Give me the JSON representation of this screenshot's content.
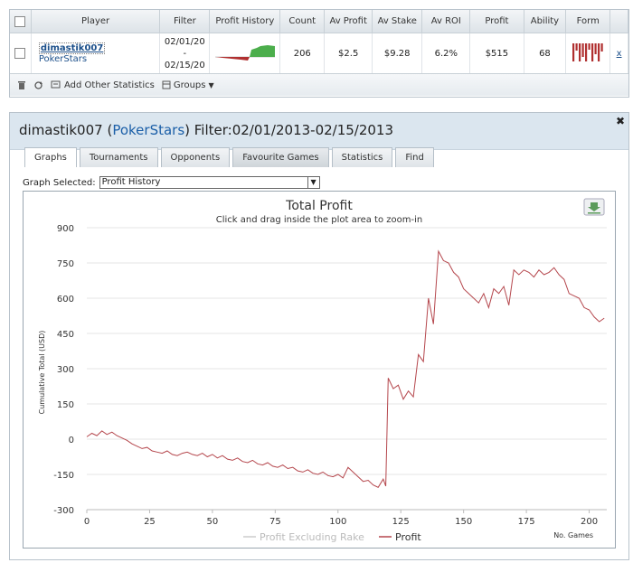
{
  "stats_table": {
    "headers": [
      "Player",
      "Filter",
      "Profit History",
      "Count",
      "Av Profit",
      "Av Stake",
      "Av ROI",
      "Profit",
      "Ability",
      "Form"
    ],
    "row": {
      "player": "dimastik007",
      "site": "PokerStars",
      "filter_from": "02/01/20",
      "filter_dash": "-",
      "filter_to": "02/15/20",
      "count": "206",
      "av_profit": "$2.5",
      "av_stake": "$9.28",
      "av_roi": "6.2%",
      "profit": "$515",
      "ability": "68",
      "remove": "x"
    },
    "form_bars": [
      1,
      0.4,
      1,
      0.75,
      1,
      0.35,
      1,
      0.6,
      1,
      0.45
    ],
    "toolbar": {
      "add_stats": "Add Other Statistics",
      "groups": "Groups"
    }
  },
  "detail": {
    "player": "dimastik007",
    "site_open": "(",
    "site": "PokerStars",
    "filter_text": ") Filter:02/01/2013-02/15/2013",
    "tabs": [
      "Graphs",
      "Tournaments",
      "Opponents",
      "Favourite Games",
      "Statistics",
      "Find"
    ],
    "graph_selected_label": "Graph Selected:",
    "graph_selected_value": "Profit History"
  },
  "colors": {
    "profit_line": "#b5474d",
    "rake_line": "#cccccc",
    "sparkline_pos": "#4cae4c",
    "sparkline_neg": "#b03030"
  },
  "chart_data": {
    "type": "line",
    "title": "Total Profit",
    "subtitle": "Click and drag inside the plot area to zoom-in",
    "xlabel": "No. Games",
    "ylabel": "Cumulative Total (USD)",
    "xlim": [
      0,
      207
    ],
    "ylim": [
      -300,
      900
    ],
    "xticks": [
      0,
      25,
      50,
      75,
      100,
      125,
      150,
      175,
      200
    ],
    "yticks": [
      -300,
      -150,
      0,
      150,
      300,
      450,
      600,
      750,
      900
    ],
    "grid": true,
    "legend": "bottom",
    "series": [
      {
        "name": "Profit Excluding Rake",
        "values": []
      },
      {
        "name": "Profit",
        "x": [
          0,
          2,
          4,
          6,
          8,
          10,
          12,
          14,
          16,
          18,
          20,
          22,
          24,
          26,
          28,
          30,
          32,
          34,
          36,
          38,
          40,
          42,
          44,
          46,
          48,
          50,
          52,
          54,
          56,
          58,
          60,
          62,
          64,
          66,
          68,
          70,
          72,
          74,
          76,
          78,
          80,
          82,
          84,
          86,
          88,
          90,
          92,
          94,
          96,
          98,
          100,
          102,
          104,
          106,
          108,
          110,
          112,
          114,
          116,
          118,
          119,
          120,
          122,
          124,
          126,
          128,
          130,
          132,
          134,
          136,
          138,
          140,
          142,
          144,
          146,
          148,
          150,
          152,
          154,
          156,
          158,
          160,
          162,
          164,
          166,
          168,
          170,
          172,
          174,
          176,
          178,
          180,
          182,
          184,
          186,
          188,
          190,
          192,
          194,
          196,
          198,
          200,
          202,
          204,
          206
        ],
        "values": [
          10,
          25,
          15,
          35,
          20,
          30,
          15,
          5,
          -5,
          -20,
          -30,
          -40,
          -35,
          -50,
          -55,
          -60,
          -50,
          -65,
          -70,
          -60,
          -55,
          -65,
          -70,
          -60,
          -75,
          -65,
          -80,
          -70,
          -85,
          -90,
          -80,
          -95,
          -100,
          -90,
          -105,
          -110,
          -100,
          -115,
          -120,
          -110,
          -125,
          -120,
          -135,
          -140,
          -130,
          -145,
          -150,
          -140,
          -155,
          -160,
          -150,
          -165,
          -120,
          -140,
          -160,
          -180,
          -175,
          -195,
          -205,
          -170,
          -200,
          260,
          215,
          230,
          170,
          205,
          180,
          360,
          330,
          600,
          490,
          800,
          760,
          750,
          710,
          690,
          640,
          620,
          600,
          580,
          620,
          560,
          640,
          620,
          650,
          570,
          720,
          700,
          720,
          710,
          690,
          720,
          700,
          710,
          730,
          700,
          680,
          620,
          610,
          600,
          560,
          550,
          520,
          500,
          515
        ]
      }
    ]
  }
}
